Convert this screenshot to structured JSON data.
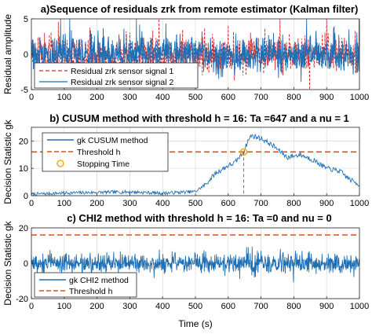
{
  "chart_data": [
    {
      "type": "line",
      "title": "a)Sequence of residuals zrk from remote estimator (Kalman filter)",
      "xlabel": "",
      "ylabel": "Residual amplitude",
      "xlim": [
        0,
        1000
      ],
      "ylim": [
        -5,
        5
      ],
      "xticks": [
        "0",
        "100",
        "200",
        "300",
        "400",
        "500",
        "600",
        "700",
        "800",
        "900",
        "1000"
      ],
      "yticks": [
        "5",
        "0",
        "-5"
      ],
      "legend_position": "bottom-left",
      "grid": true,
      "series": [
        {
          "name": "Residual zrk sensor signal 1",
          "color": "#d62728",
          "style": "dashed",
          "generator": "noise",
          "amplitude": 1.3,
          "seed": 11
        },
        {
          "name": "Residual zrk sensor signal 2",
          "color": "#1f6fb5",
          "style": "solid",
          "generator": "noise",
          "amplitude": 1.3,
          "seed": 29
        }
      ]
    },
    {
      "type": "line",
      "title": "b) CUSUM method with threshold h = 16: Ta =647 and a nu = 1",
      "xlabel": "",
      "ylabel": "Decision Statistic gk",
      "xlim": [
        0,
        1000
      ],
      "ylim": [
        0,
        25
      ],
      "xticks": [
        "0",
        "100",
        "200",
        "300",
        "400",
        "500",
        "600",
        "700",
        "800",
        "900",
        "1000"
      ],
      "yticks": [
        "20",
        "10",
        "0"
      ],
      "legend_position": "top-left",
      "grid": true,
      "series": [
        {
          "name": "gk CUSUM method",
          "color": "#1f6fb5",
          "style": "solid",
          "generator": "cusum",
          "keypoints": [
            [
              0,
              0.5
            ],
            [
              100,
              1.0
            ],
            [
              200,
              1.2
            ],
            [
              300,
              1.4
            ],
            [
              400,
              0.9
            ],
            [
              500,
              1.5
            ],
            [
              530,
              4
            ],
            [
              560,
              8
            ],
            [
              600,
              11
            ],
            [
              620,
              12
            ],
            [
              647,
              16
            ],
            [
              660,
              20
            ],
            [
              670,
              22
            ],
            [
              700,
              21
            ],
            [
              740,
              18
            ],
            [
              780,
              14
            ],
            [
              820,
              15
            ],
            [
              860,
              13
            ],
            [
              900,
              10
            ],
            [
              940,
              9
            ],
            [
              970,
              6
            ],
            [
              1000,
              4
            ]
          ]
        },
        {
          "name": "Threshold h",
          "color": "#d95319",
          "style": "dashed",
          "values": [
            16,
            16
          ],
          "x": [
            0,
            1000
          ]
        },
        {
          "name": "Stopping Time",
          "color": "#edb120",
          "style": "marker-circle",
          "x": [
            647
          ],
          "values": [
            16
          ]
        }
      ]
    },
    {
      "type": "line",
      "title": "c) CHI2 method with threshold h = 16: Ta =0 and nu = 0",
      "xlabel": "Time (s)",
      "ylabel": "Decision Statistic gk",
      "xlim": [
        0,
        1000
      ],
      "ylim": [
        -20,
        20
      ],
      "xticks": [
        "0",
        "100",
        "200",
        "300",
        "400",
        "500",
        "600",
        "700",
        "800",
        "900",
        "1000"
      ],
      "yticks": [
        "20",
        "0",
        "-20"
      ],
      "legend_position": "bottom-left",
      "grid": true,
      "series": [
        {
          "name": "gk CHI2 method",
          "color": "#1f6fb5",
          "style": "solid",
          "generator": "noise",
          "amplitude": 2.8,
          "seed": 53
        },
        {
          "name": "Threshold h",
          "color": "#d95319",
          "style": "dashed",
          "values": [
            16,
            16
          ],
          "x": [
            0,
            1000
          ]
        }
      ]
    }
  ]
}
